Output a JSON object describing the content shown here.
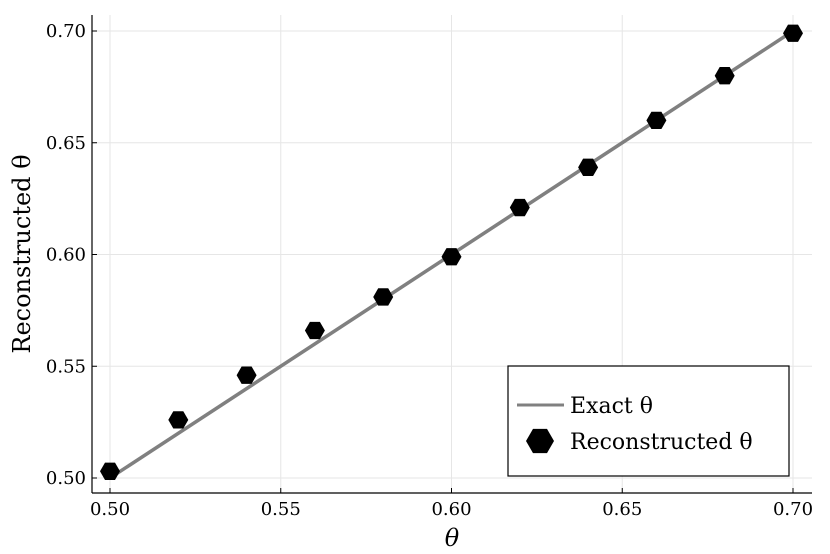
{
  "chart_data": {
    "type": "scatter",
    "xlabel": "θ",
    "ylabel": "Reconstructed θ",
    "xlim": [
      0.5,
      0.7
    ],
    "ylim": [
      0.5,
      0.7
    ],
    "x_ticks": [
      "0.50",
      "0.55",
      "0.60",
      "0.65",
      "0.70"
    ],
    "y_ticks": [
      "0.50",
      "0.55",
      "0.60",
      "0.65",
      "0.70"
    ],
    "grid": true,
    "legend_position": "bottom-right",
    "series": [
      {
        "name": "Exact θ",
        "kind": "line",
        "color": "#808080",
        "x": [
          0.5,
          0.7
        ],
        "y": [
          0.5,
          0.7
        ]
      },
      {
        "name": "Reconstructed θ",
        "kind": "scatter",
        "marker": "hexagon",
        "color": "#000000",
        "x": [
          0.5,
          0.52,
          0.54,
          0.56,
          0.58,
          0.6,
          0.62,
          0.64,
          0.66,
          0.68,
          0.7
        ],
        "y": [
          0.503,
          0.526,
          0.546,
          0.566,
          0.581,
          0.599,
          0.621,
          0.639,
          0.66,
          0.68,
          0.699
        ]
      }
    ]
  }
}
